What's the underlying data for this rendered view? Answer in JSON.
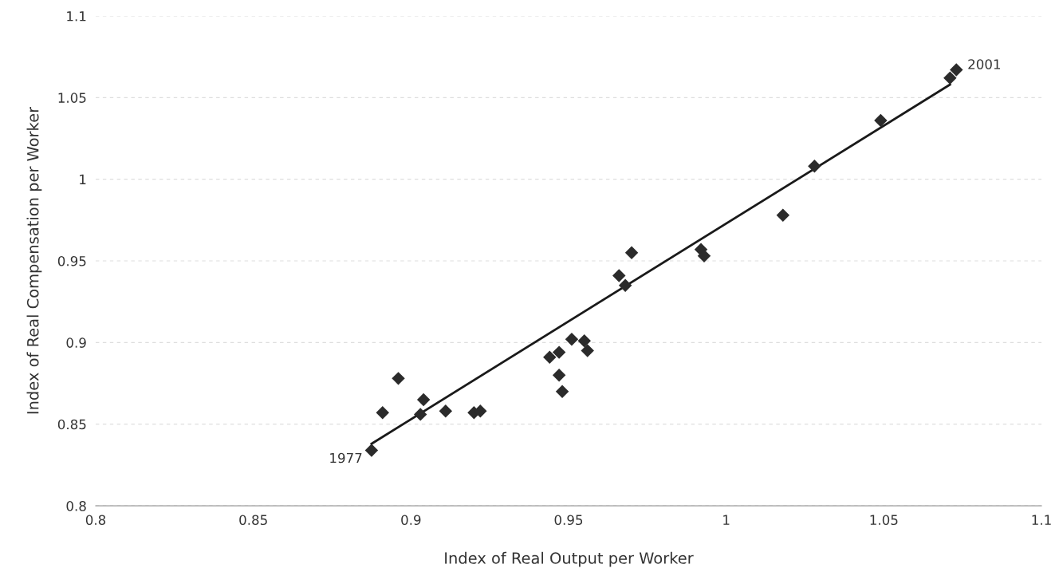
{
  "chart_data": {
    "type": "scatter",
    "xlabel": "Index of Real Output per Worker",
    "ylabel": "Index of Real Compensation per Worker",
    "xlim": [
      0.8,
      1.1
    ],
    "xticks": [
      0.8,
      0.85,
      0.9,
      0.95,
      1,
      1.05,
      1.1
    ],
    "ylim": [
      0.8,
      1.1
    ],
    "yticks": [
      0.8,
      0.85,
      0.9,
      0.95,
      1,
      1.05,
      1.1
    ],
    "grid": "y",
    "series": [
      {
        "marker": "diamond",
        "color": "#2b2b2b",
        "x": [
          0.8875,
          0.891,
          0.896,
          0.903,
          0.904,
          0.911,
          0.92,
          0.922,
          0.944,
          0.947,
          0.947,
          0.948,
          0.951,
          0.955,
          0.956,
          0.966,
          0.968,
          0.97,
          0.992,
          0.993,
          1.018,
          1.028,
          1.049,
          1.071,
          1.073
        ],
        "values": [
          0.834,
          0.857,
          0.878,
          0.856,
          0.865,
          0.858,
          0.857,
          0.858,
          0.891,
          0.894,
          0.88,
          0.87,
          0.902,
          0.901,
          0.895,
          0.941,
          0.935,
          0.955,
          0.957,
          0.953,
          0.978,
          1.008,
          1.036,
          1.062,
          1.067
        ]
      },
      {
        "type": "line",
        "marker": "none",
        "color": "#1a1a1a",
        "x": [
          0.8875,
          1.071
        ],
        "values": [
          0.838,
          1.058
        ]
      }
    ],
    "annotations": [
      {
        "text": "1977",
        "x": 0.8875,
        "y": 0.834
      },
      {
        "text": "2001",
        "x": 1.073,
        "y": 1.067
      }
    ]
  }
}
